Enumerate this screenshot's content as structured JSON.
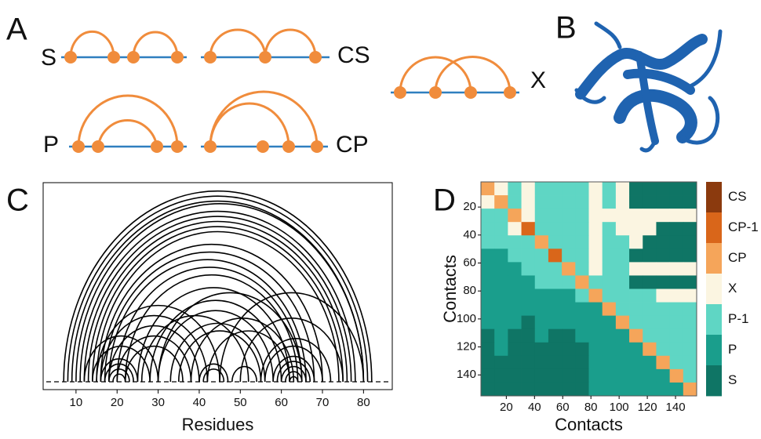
{
  "panel_labels": [
    "A",
    "B",
    "C",
    "D"
  ],
  "motifs": [
    "S",
    "CS",
    "P",
    "CP",
    "X"
  ],
  "chart_data": [
    {
      "type": "arc",
      "xlabel": "Residues",
      "xlim": [
        2,
        87
      ],
      "xticks": [
        10,
        20,
        30,
        40,
        50,
        60,
        70,
        80
      ],
      "color": "#000000",
      "arcs": [
        [
          7,
          82
        ],
        [
          8,
          81
        ],
        [
          9,
          80
        ],
        [
          10,
          80
        ],
        [
          11,
          78
        ],
        [
          12,
          77
        ],
        [
          13,
          76
        ],
        [
          14,
          75
        ],
        [
          15,
          74
        ],
        [
          16,
          70
        ],
        [
          17,
          68
        ],
        [
          18,
          66
        ],
        [
          20,
          65
        ],
        [
          22,
          64
        ],
        [
          25,
          62
        ],
        [
          28,
          60
        ],
        [
          30,
          58
        ],
        [
          33,
          56
        ],
        [
          35,
          55
        ],
        [
          15,
          45
        ],
        [
          16,
          42
        ],
        [
          18,
          40
        ],
        [
          20,
          38
        ],
        [
          22,
          36
        ],
        [
          12,
          30
        ],
        [
          14,
          28
        ],
        [
          16,
          25
        ],
        [
          17,
          24
        ],
        [
          18,
          23
        ],
        [
          19,
          22
        ],
        [
          40,
          47
        ],
        [
          41,
          46
        ],
        [
          48,
          54
        ],
        [
          55,
          72
        ],
        [
          56,
          70
        ],
        [
          58,
          68
        ],
        [
          59,
          67
        ],
        [
          60,
          66
        ],
        [
          61,
          65
        ],
        [
          62,
          64
        ],
        [
          50,
          75
        ],
        [
          45,
          80
        ],
        [
          38,
          63
        ],
        [
          30,
          65
        ],
        [
          26,
          52
        ],
        [
          42,
          62
        ]
      ]
    },
    {
      "type": "heatmap",
      "xlabel": "Contacts",
      "ylabel": "Contacts",
      "xlim": [
        2,
        155
      ],
      "ylim": [
        2,
        155
      ],
      "xticks": [
        20,
        40,
        60,
        80,
        100,
        120,
        140
      ],
      "yticks": [
        20,
        40,
        60,
        80,
        100,
        120,
        140
      ],
      "legend": [
        {
          "label": "CS",
          "color": "#8b3a0e"
        },
        {
          "label": "CP-1",
          "color": "#d9661a"
        },
        {
          "label": "CP",
          "color": "#f5a55a"
        },
        {
          "label": "X",
          "color": "#fbf5e1"
        },
        {
          "label": "P-1",
          "color": "#5fd6c4"
        },
        {
          "label": "P",
          "color": "#1a9e8c"
        },
        {
          "label": "S",
          "color": "#0f7565"
        }
      ],
      "cells": [
        [
          2,
          3,
          4,
          3,
          4,
          4,
          4,
          4,
          3,
          4,
          3,
          6,
          6,
          6,
          6,
          6
        ],
        [
          3,
          2,
          4,
          3,
          4,
          4,
          4,
          4,
          3,
          4,
          3,
          6,
          6,
          6,
          6,
          6
        ],
        [
          4,
          4,
          2,
          3,
          4,
          4,
          4,
          4,
          3,
          3,
          3,
          3,
          3,
          3,
          3,
          3
        ],
        [
          4,
          4,
          3,
          1,
          4,
          4,
          4,
          4,
          3,
          4,
          3,
          3,
          3,
          6,
          6,
          6
        ],
        [
          4,
          4,
          4,
          4,
          2,
          4,
          4,
          4,
          3,
          4,
          4,
          3,
          6,
          6,
          6,
          6
        ],
        [
          5,
          5,
          4,
          4,
          4,
          1,
          4,
          4,
          3,
          4,
          4,
          6,
          6,
          6,
          6,
          6
        ],
        [
          5,
          5,
          5,
          4,
          4,
          4,
          2,
          4,
          3,
          4,
          4,
          3,
          3,
          3,
          3,
          3
        ],
        [
          5,
          5,
          5,
          5,
          4,
          4,
          4,
          2,
          4,
          4,
          4,
          6,
          6,
          6,
          6,
          6
        ],
        [
          5,
          5,
          5,
          5,
          5,
          5,
          5,
          4,
          2,
          4,
          4,
          4,
          4,
          3,
          3,
          3
        ],
        [
          5,
          5,
          5,
          5,
          5,
          5,
          5,
          5,
          5,
          2,
          4,
          4,
          4,
          4,
          4,
          4
        ],
        [
          5,
          5,
          5,
          6,
          5,
          5,
          5,
          5,
          5,
          5,
          2,
          4,
          4,
          4,
          4,
          4
        ],
        [
          6,
          5,
          6,
          6,
          5,
          6,
          6,
          5,
          5,
          5,
          5,
          2,
          4,
          4,
          4,
          4
        ],
        [
          6,
          5,
          6,
          6,
          6,
          6,
          6,
          6,
          5,
          5,
          5,
          5,
          2,
          4,
          4,
          4
        ],
        [
          6,
          6,
          6,
          6,
          6,
          6,
          6,
          6,
          5,
          5,
          5,
          5,
          5,
          2,
          4,
          4
        ],
        [
          6,
          6,
          6,
          6,
          6,
          6,
          6,
          6,
          5,
          5,
          5,
          5,
          5,
          5,
          2,
          4
        ],
        [
          6,
          6,
          6,
          6,
          6,
          6,
          6,
          6,
          5,
          5,
          5,
          5,
          5,
          5,
          5,
          2
        ]
      ]
    }
  ]
}
